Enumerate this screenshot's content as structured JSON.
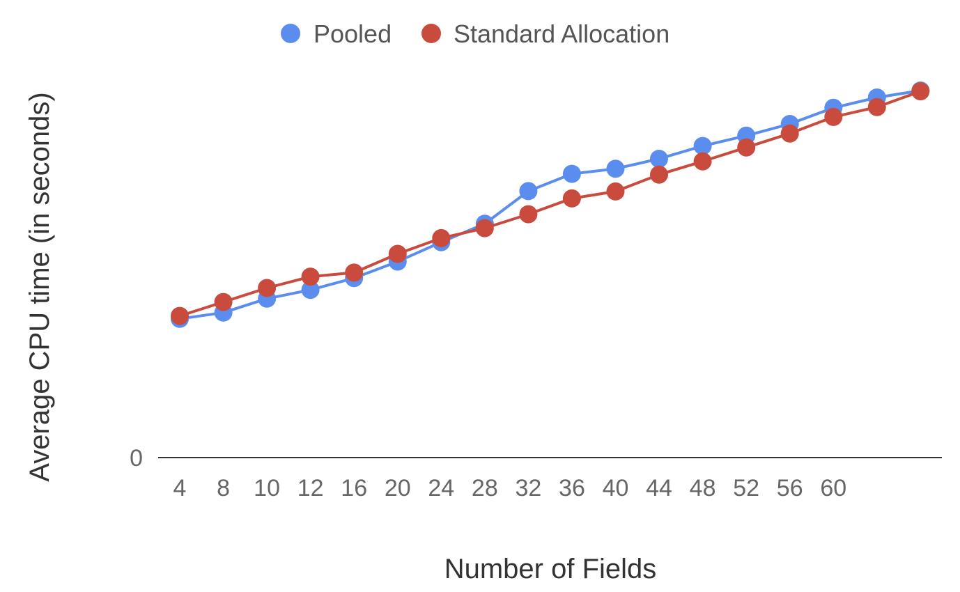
{
  "chart_data": {
    "type": "line",
    "title": "",
    "xlabel": "Number of Fields",
    "ylabel": "Average CPU time (in seconds)",
    "categories": [
      "4",
      "8",
      "10",
      "12",
      "16",
      "20",
      "24",
      "28",
      "32",
      "36",
      "40",
      "44",
      "48",
      "52",
      "56",
      "60",
      "",
      ""
    ],
    "ytick_labels": [
      "0"
    ],
    "ylim": [
      0,
      100
    ],
    "grid": false,
    "legend_position": "top",
    "series": [
      {
        "name": "Pooled",
        "color": "#5B8DEF",
        "values": [
          37.8,
          39.5,
          43.3,
          45.7,
          48.9,
          53.4,
          58.7,
          63.7,
          72.6,
          77.3,
          78.7,
          81.4,
          84.9,
          87.7,
          90.9,
          95.3,
          98.1,
          100.0
        ]
      },
      {
        "name": "Standard Allocation",
        "color": "#C94B3D",
        "values": [
          38.6,
          42.4,
          46.2,
          49.3,
          50.4,
          55.5,
          59.8,
          62.5,
          66.3,
          70.6,
          72.5,
          77.1,
          80.7,
          84.5,
          88.3,
          92.8,
          95.5,
          99.8
        ]
      }
    ]
  }
}
